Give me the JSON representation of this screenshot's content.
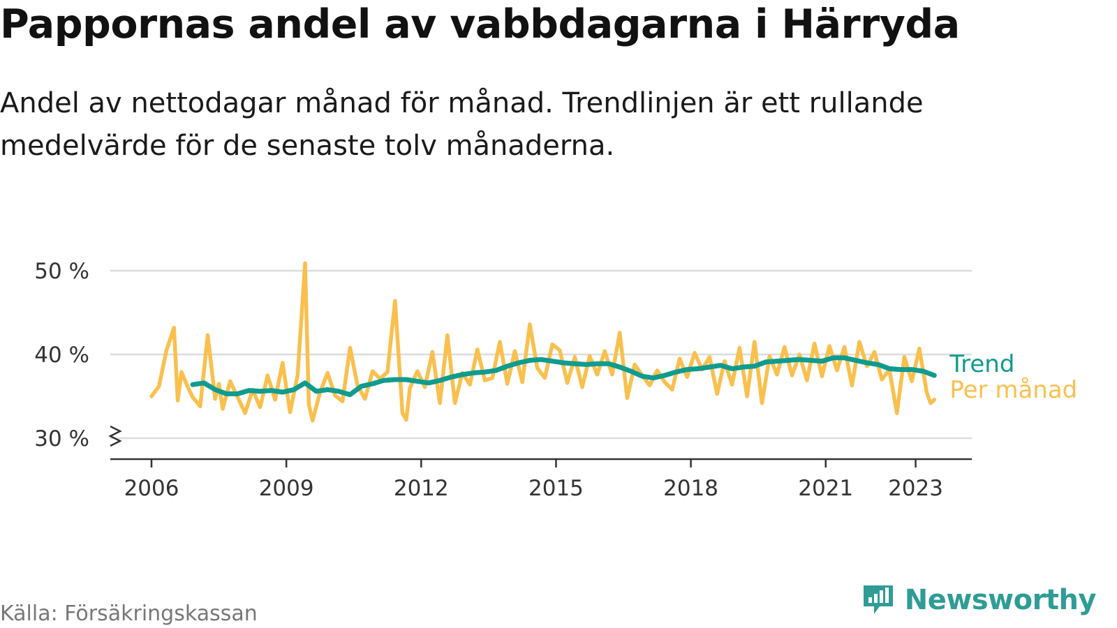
{
  "title": "Pappornas andel av vabbdagarna i Härryda",
  "subtitle": "Andel av nettodagar månad för månad. Trendlinjen är ett rullande medelvärde för de senaste tolv månaderna.",
  "source": "Källa: Försäkringskassan",
  "brand": {
    "name": "Newsworthy",
    "icon": "bar-chart-speech-bubble-icon",
    "color": "#2f9c95"
  },
  "chart_data": {
    "type": "line",
    "title": "Pappornas andel av vabbdagarna i Härryda",
    "xlim": [
      "2005-02",
      "2024-04"
    ],
    "ylim": [
      27.5,
      50
    ],
    "y_ticks": [
      {
        "value": 50,
        "label": "50 %"
      },
      {
        "value": 40,
        "label": "40 %"
      },
      {
        "value": 30,
        "label": "30 %"
      }
    ],
    "x_ticks": [
      {
        "value": "2006-01",
        "label": "2006"
      },
      {
        "value": "2009-01",
        "label": "2009"
      },
      {
        "value": "2012-01",
        "label": "2012"
      },
      {
        "value": "2015-01",
        "label": "2015"
      },
      {
        "value": "2018-01",
        "label": "2018"
      },
      {
        "value": "2021-01",
        "label": "2021"
      },
      {
        "value": "2023-01",
        "label": "2023"
      }
    ],
    "grid": "horizontal",
    "axis_break": true,
    "legend": "direct-labels-right",
    "series": [
      {
        "name": "Trend",
        "color": "#0f9b8e",
        "x": [
          "2006-12",
          "2007-03",
          "2007-06",
          "2007-09",
          "2007-12",
          "2008-03",
          "2008-06",
          "2008-09",
          "2008-12",
          "2009-03",
          "2009-06",
          "2009-09",
          "2009-12",
          "2010-03",
          "2010-06",
          "2010-09",
          "2010-12",
          "2011-03",
          "2011-06",
          "2011-09",
          "2011-12",
          "2012-03",
          "2012-06",
          "2012-09",
          "2012-12",
          "2013-03",
          "2013-06",
          "2013-09",
          "2013-12",
          "2014-03",
          "2014-06",
          "2014-09",
          "2014-12",
          "2015-03",
          "2015-06",
          "2015-09",
          "2015-12",
          "2016-03",
          "2016-06",
          "2016-09",
          "2016-12",
          "2017-03",
          "2017-06",
          "2017-09",
          "2017-12",
          "2018-03",
          "2018-06",
          "2018-09",
          "2018-12",
          "2019-03",
          "2019-06",
          "2019-09",
          "2019-12",
          "2020-03",
          "2020-06",
          "2020-09",
          "2020-12",
          "2021-03",
          "2021-06",
          "2021-09",
          "2021-12",
          "2022-03",
          "2022-06",
          "2022-09",
          "2022-12",
          "2023-03",
          "2023-06"
        ],
        "y": [
          36.4,
          36.6,
          35.8,
          35.3,
          35.3,
          35.7,
          35.6,
          35.7,
          35.5,
          35.8,
          36.6,
          35.6,
          35.8,
          35.6,
          35.2,
          36.2,
          36.5,
          36.9,
          37.0,
          37.0,
          36.8,
          36.6,
          36.9,
          37.3,
          37.6,
          37.8,
          37.9,
          38.1,
          38.6,
          39.0,
          39.3,
          39.4,
          39.2,
          39.0,
          38.9,
          38.8,
          38.9,
          38.9,
          38.5,
          38.0,
          37.4,
          37.2,
          37.5,
          37.9,
          38.2,
          38.3,
          38.5,
          38.7,
          38.3,
          38.5,
          38.6,
          39.1,
          39.2,
          39.3,
          39.4,
          39.3,
          39.2,
          39.6,
          39.6,
          39.3,
          39.0,
          38.8,
          38.3,
          38.2,
          38.2,
          38.0,
          37.5
        ]
      },
      {
        "name": "Per månad",
        "color": "#f9c04e",
        "x": [
          "2006-01",
          "2006-03",
          "2006-05",
          "2006-07",
          "2006-08",
          "2006-09",
          "2006-11",
          "2006-12",
          "2007-02",
          "2007-04",
          "2007-06",
          "2007-07",
          "2007-08",
          "2007-10",
          "2007-12",
          "2008-02",
          "2008-04",
          "2008-06",
          "2008-08",
          "2008-10",
          "2008-12",
          "2009-02",
          "2009-04",
          "2009-06",
          "2009-07",
          "2009-08",
          "2009-10",
          "2009-12",
          "2010-02",
          "2010-04",
          "2010-06",
          "2010-08",
          "2010-10",
          "2010-12",
          "2011-02",
          "2011-04",
          "2011-06",
          "2011-08",
          "2011-09",
          "2011-10",
          "2011-12",
          "2012-02",
          "2012-04",
          "2012-06",
          "2012-08",
          "2012-10",
          "2012-12",
          "2013-02",
          "2013-04",
          "2013-06",
          "2013-08",
          "2013-10",
          "2013-12",
          "2014-02",
          "2014-04",
          "2014-06",
          "2014-08",
          "2014-10",
          "2014-12",
          "2015-02",
          "2015-04",
          "2015-06",
          "2015-08",
          "2015-10",
          "2015-12",
          "2016-02",
          "2016-04",
          "2016-06",
          "2016-08",
          "2016-10",
          "2016-12",
          "2017-02",
          "2017-04",
          "2017-06",
          "2017-08",
          "2017-10",
          "2017-12",
          "2018-02",
          "2018-04",
          "2018-06",
          "2018-08",
          "2018-10",
          "2018-12",
          "2019-02",
          "2019-04",
          "2019-06",
          "2019-08",
          "2019-10",
          "2019-12",
          "2020-02",
          "2020-04",
          "2020-06",
          "2020-08",
          "2020-10",
          "2020-12",
          "2021-02",
          "2021-04",
          "2021-06",
          "2021-08",
          "2021-10",
          "2021-12",
          "2022-02",
          "2022-04",
          "2022-06",
          "2022-08",
          "2022-10",
          "2022-12",
          "2023-02",
          "2023-04",
          "2023-05",
          "2023-06"
        ],
        "y": [
          35.0,
          36.2,
          40.5,
          43.2,
          34.5,
          37.9,
          35.8,
          34.9,
          33.8,
          42.3,
          34.7,
          36.5,
          33.5,
          36.8,
          34.9,
          33.0,
          35.8,
          33.7,
          37.5,
          34.6,
          39.0,
          33.1,
          37.5,
          50.9,
          34.0,
          32.1,
          35.5,
          37.8,
          35.1,
          34.4,
          40.8,
          36.3,
          34.7,
          38.0,
          37.1,
          37.9,
          46.4,
          33.0,
          32.2,
          36.0,
          38.0,
          36.1,
          40.3,
          34.2,
          42.3,
          34.2,
          37.8,
          36.4,
          40.6,
          36.9,
          37.2,
          41.5,
          36.5,
          40.4,
          36.7,
          43.6,
          38.4,
          37.2,
          41.2,
          40.5,
          36.6,
          39.7,
          36.1,
          39.8,
          37.6,
          40.4,
          37.6,
          42.6,
          34.8,
          38.8,
          37.5,
          36.3,
          38.1,
          36.7,
          35.8,
          39.5,
          37.3,
          40.2,
          38.2,
          39.7,
          35.3,
          39.2,
          36.4,
          40.8,
          35.0,
          41.5,
          34.2,
          39.8,
          37.6,
          40.9,
          37.5,
          40.0,
          36.9,
          41.3,
          37.4,
          41.0,
          38.1,
          40.9,
          36.3,
          41.5,
          38.6,
          40.3,
          37.0,
          38.2,
          33.0,
          39.7,
          36.8,
          40.7,
          35.4,
          34.2,
          34.6
        ]
      }
    ]
  }
}
